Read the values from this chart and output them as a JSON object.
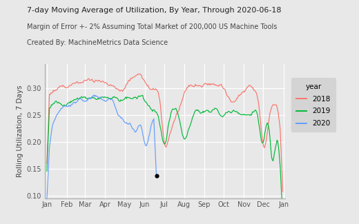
{
  "title": "7-day Moving Average of Utilization, By Year, Through 2020-06-18",
  "subtitle": "Margin of Error +- 2% Assuming Total Market of 200,000 US Machine Tools",
  "credit": "Created By: MachineMetrics Data Science",
  "ylabel": "Rolling Utilization, 7 Days",
  "ylim": [
    0.095,
    0.345
  ],
  "colors": {
    "2018": "#F8766D",
    "2019": "#00BA38",
    "2020": "#619CFF"
  },
  "bg_color": "#E8E8E8",
  "yticks": [
    0.1,
    0.15,
    0.2,
    0.25,
    0.3
  ],
  "xtick_labels": [
    "Jan",
    "Feb",
    "Mar",
    "Apr",
    "May",
    "Jun",
    "Jul",
    "Aug",
    "Sep",
    "Oct",
    "Nov",
    "Dec",
    "Jan"
  ],
  "month_days": [
    0,
    31,
    59,
    90,
    120,
    151,
    181,
    212,
    243,
    273,
    304,
    334,
    365
  ]
}
